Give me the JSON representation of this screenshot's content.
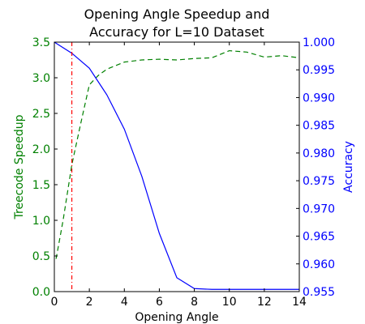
{
  "chart_data": {
    "type": "line",
    "title_lines": [
      "Opening Angle Speedup and",
      "Accuracy for L=10 Dataset"
    ],
    "xlabel": "Opening Angle",
    "ylabel_left": "Treecode Speedup",
    "ylabel_right": "Accuracy",
    "xlim": [
      0,
      14
    ],
    "ylim_left": [
      0.0,
      3.5
    ],
    "ylim_right": [
      0.955,
      1.0
    ],
    "x_ticks": [
      0,
      2,
      4,
      6,
      8,
      10,
      12,
      14
    ],
    "x_tick_labels": [
      "0",
      "2",
      "4",
      "6",
      "8",
      "10",
      "12",
      "14"
    ],
    "y_left_ticks": [
      0.0,
      0.5,
      1.0,
      1.5,
      2.0,
      2.5,
      3.0,
      3.5
    ],
    "y_left_tick_labels": [
      "0.0",
      "0.5",
      "1.0",
      "1.5",
      "2.0",
      "2.5",
      "3.0",
      "3.5"
    ],
    "y_right_ticks": [
      0.955,
      0.96,
      0.965,
      0.97,
      0.975,
      0.98,
      0.985,
      0.99,
      0.995,
      1.0
    ],
    "y_right_tick_labels": [
      "0.955",
      "0.960",
      "0.965",
      "0.970",
      "0.975",
      "0.980",
      "0.985",
      "0.990",
      "0.995",
      "1.000"
    ],
    "series": [
      {
        "name": "Treecode Speedup",
        "axis": "left",
        "color": "#008000",
        "style": "dashed",
        "x": [
          0.1,
          0.5,
          1,
          1.5,
          2,
          2.5,
          3,
          4,
          5,
          6,
          7,
          8,
          9,
          10,
          11,
          12,
          13,
          14
        ],
        "y": [
          0.46,
          1.0,
          1.78,
          2.35,
          2.9,
          3.03,
          3.12,
          3.22,
          3.25,
          3.26,
          3.25,
          3.27,
          3.28,
          3.38,
          3.36,
          3.29,
          3.31,
          3.28
        ]
      },
      {
        "name": "Accuracy",
        "axis": "right",
        "color": "#0000ff",
        "style": "solid",
        "x": [
          0,
          1,
          2,
          3,
          4,
          5,
          6,
          7,
          8,
          9,
          10,
          11,
          12,
          13,
          14
        ],
        "y": [
          1.0,
          0.998,
          0.9953,
          0.9905,
          0.9843,
          0.9758,
          0.9655,
          0.9575,
          0.95555,
          0.9554,
          0.9554,
          0.9554,
          0.9554,
          0.9554,
          0.9554
        ]
      }
    ],
    "vline": {
      "x": 1,
      "color": "#ff0000",
      "style": "dashdot"
    },
    "colors": {
      "left_axis": "#008000",
      "right_axis": "#0000ff",
      "text": "#000000"
    }
  }
}
